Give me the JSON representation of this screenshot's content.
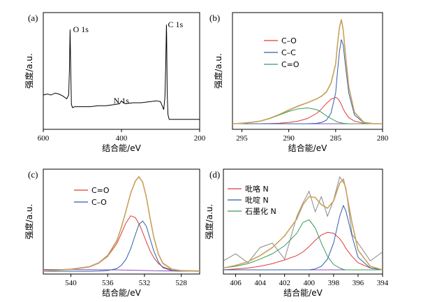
{
  "colors": {
    "raw": "#888888",
    "envelope": "#c9a25a",
    "red": "#e03a3a",
    "blue": "#2f5fa8",
    "green": "#3a9a5a",
    "purple": "#8a4fc0",
    "survey": "#000000"
  },
  "chart_data": [
    {
      "type": "line",
      "panel_label": "(a)",
      "xlabel": "结合能/eV",
      "ylabel": "强度/a.u.",
      "xlim": [
        600,
        200
      ],
      "xticks": [
        600,
        400,
        200
      ],
      "annotations": [
        {
          "text": "O 1s",
          "x": 531,
          "y": 95
        },
        {
          "text": "N 1s",
          "x": 399,
          "y": 22
        },
        {
          "text": "C 1s",
          "x": 284.8,
          "y": 100
        }
      ],
      "series": [
        {
          "x": [
            600,
            590,
            580,
            570,
            560,
            550,
            540,
            535,
            533,
            531.5,
            530,
            528,
            525,
            520,
            500,
            480,
            460,
            440,
            420,
            405,
            400,
            398,
            390,
            370,
            350,
            330,
            310,
            300,
            292,
            289,
            287,
            285,
            284.5,
            283,
            281,
            278,
            270,
            260,
            250,
            240,
            230,
            220,
            210,
            200
          ],
          "y": [
            28,
            29,
            28,
            30,
            29,
            27,
            24,
            28,
            55,
            95,
            60,
            18,
            15,
            16,
            16,
            16,
            17,
            17,
            18,
            19,
            22,
            21,
            19,
            20,
            20,
            21,
            22,
            21,
            13,
            25,
            55,
            100,
            90,
            30,
            8,
            3,
            3,
            3,
            3,
            3,
            3,
            3,
            3,
            3
          ]
        }
      ]
    },
    {
      "type": "line",
      "panel_label": "(b)",
      "xlabel": "结合能/eV",
      "ylabel": "强度/a.u.",
      "xlim": [
        296,
        280
      ],
      "xticks": [
        295,
        290,
        285,
        280
      ],
      "legend": [
        "C–O",
        "C–C",
        "C=O"
      ],
      "legend_position": "center",
      "x": [
        296,
        295,
        294,
        293,
        292,
        291,
        290,
        289,
        288,
        287,
        286.5,
        286,
        285.5,
        285,
        284.8,
        284.6,
        284.4,
        284.2,
        284,
        283.6,
        283,
        282,
        281,
        280
      ],
      "series": [
        {
          "name": "C–O",
          "values": [
            0,
            0,
            0,
            0,
            0.2,
            0.6,
            1.5,
            3,
            6,
            12,
            17,
            23,
            28,
            30,
            29,
            26,
            22,
            17,
            13,
            7,
            3,
            0.5,
            0,
            0
          ]
        },
        {
          "name": "C–C",
          "values": [
            0,
            0,
            0,
            0,
            0,
            0,
            0,
            0,
            0,
            0.5,
            1.5,
            4,
            12,
            35,
            60,
            82,
            96,
            90,
            70,
            35,
            10,
            1,
            0,
            0
          ]
        },
        {
          "name": "C=O",
          "values": [
            0,
            0.5,
            1.5,
            3,
            6,
            10,
            14,
            17,
            18,
            16,
            13,
            9,
            6,
            3,
            2,
            1.5,
            1,
            0.5,
            0.3,
            0,
            0,
            0,
            0,
            0
          ]
        },
        {
          "name": "envelope",
          "values": [
            0,
            0.5,
            1.5,
            3,
            6.2,
            10.6,
            15.5,
            20,
            24,
            28.5,
            31.5,
            36,
            46,
            68,
            91,
            109.5,
            119,
            107.5,
            83.3,
            42,
            13,
            1.5,
            0,
            0
          ]
        },
        {
          "name": "raw",
          "values": [
            0,
            0.8,
            1.8,
            3.2,
            6.5,
            10.8,
            15.8,
            20.5,
            24.2,
            28.2,
            31.8,
            36.5,
            46.5,
            68.5,
            91.5,
            110,
            118.5,
            107,
            83.5,
            42.5,
            13.5,
            1.8,
            0.3,
            0
          ]
        },
        {
          "name": "baseline",
          "values": [
            0,
            0,
            0,
            0,
            0,
            0,
            0,
            0,
            0,
            0,
            0,
            0,
            0,
            0,
            0,
            0,
            0,
            0,
            0,
            0,
            0,
            0,
            0,
            0
          ]
        }
      ]
    },
    {
      "type": "line",
      "panel_label": "(c)",
      "xlabel": "结合能/eV",
      "ylabel": "强度/a.u.",
      "xlim": [
        543,
        526
      ],
      "xticks": [
        540,
        536,
        532,
        528
      ],
      "legend": [
        "C=O",
        "C–O"
      ],
      "legend_position": "top-left",
      "x": [
        543,
        540,
        538,
        537,
        536,
        535,
        534.5,
        534,
        533.5,
        533,
        532.6,
        532.2,
        531.8,
        531.4,
        531,
        530.5,
        530,
        529,
        528,
        526
      ],
      "series": [
        {
          "name": "C=O",
          "values": [
            0.5,
            2,
            5,
            9,
            17,
            32,
            44,
            56,
            64,
            62,
            55,
            45,
            34,
            24,
            16,
            9,
            5,
            1.5,
            0.5,
            0
          ]
        },
        {
          "name": "C–O",
          "values": [
            0,
            0,
            0,
            0.2,
            0.8,
            3,
            7,
            14,
            26,
            42,
            54,
            58,
            52,
            38,
            24,
            11,
            4,
            0.5,
            0,
            0
          ]
        },
        {
          "name": "envelope",
          "values": [
            0.5,
            2,
            5,
            9.2,
            17.8,
            35,
            51,
            70,
            90,
            104,
            109,
            103,
            86,
            62,
            40,
            20,
            9,
            2,
            0.5,
            0
          ]
        },
        {
          "name": "raw",
          "values": [
            1,
            2.5,
            5.5,
            9.8,
            18.5,
            35.8,
            51.5,
            70.5,
            90.5,
            103.5,
            109.5,
            102.5,
            86.5,
            61.5,
            40.5,
            20.5,
            9.5,
            2.5,
            1,
            0.5
          ]
        },
        {
          "name": "baseline",
          "values": [
            2,
            1.9,
            1.8,
            1.7,
            1.6,
            1.5,
            1.4,
            1.3,
            1.2,
            1.1,
            1,
            0.9,
            0.8,
            0.7,
            0.6,
            0.5,
            0.4,
            0.3,
            0.2,
            0
          ]
        }
      ]
    },
    {
      "type": "line",
      "panel_label": "(d)",
      "xlabel": "结合能/eV",
      "ylabel": "强度/a.u.",
      "xlim": [
        407,
        394
      ],
      "xticks": [
        406,
        404,
        402,
        400,
        398,
        396,
        394
      ],
      "legend": [
        "吡咯 N",
        "吡啶 N",
        "石墨化 N"
      ],
      "legend_position": "top-left",
      "x": [
        407,
        406,
        405,
        404,
        403,
        402,
        401,
        400.5,
        400,
        399.5,
        399,
        398.5,
        398,
        397.5,
        397.2,
        397,
        396.5,
        396,
        395,
        394
      ],
      "series": [
        {
          "name": "吡咯 N",
          "values": [
            0,
            1,
            2,
            4,
            7,
            11,
            16,
            20,
            26,
            33,
            39,
            42,
            41,
            35,
            29,
            24,
            15,
            8,
            2,
            0
          ]
        },
        {
          "name": "吡啶 N",
          "values": [
            0,
            0,
            0,
            0,
            0,
            0,
            0,
            0,
            0,
            1,
            4,
            12,
            30,
            60,
            72,
            66,
            38,
            14,
            2,
            0
          ]
        },
        {
          "name": "石墨化 N",
          "values": [
            2,
            4,
            7,
            12,
            18,
            27,
            41,
            53,
            56,
            47,
            30,
            15,
            6,
            2,
            0.5,
            0,
            0,
            0,
            0,
            0
          ]
        },
        {
          "name": "envelope",
          "values": [
            2,
            5,
            9,
            16,
            25,
            38,
            57,
            73,
            82,
            81,
            73,
            69,
            77,
            97,
            101.5,
            90,
            53,
            22,
            4,
            0
          ]
        },
        {
          "name": "raw",
          "values": [
            10,
            18,
            8,
            25,
            30,
            12,
            60,
            75,
            88,
            65,
            82,
            60,
            78,
            104,
            98,
            92,
            40,
            30,
            10,
            20
          ]
        },
        {
          "name": "baseline",
          "values": [
            0,
            0,
            0,
            0,
            0,
            0,
            0,
            0,
            0,
            0,
            0,
            0,
            0,
            0,
            0,
            0,
            0,
            0,
            0,
            0
          ]
        }
      ]
    }
  ]
}
